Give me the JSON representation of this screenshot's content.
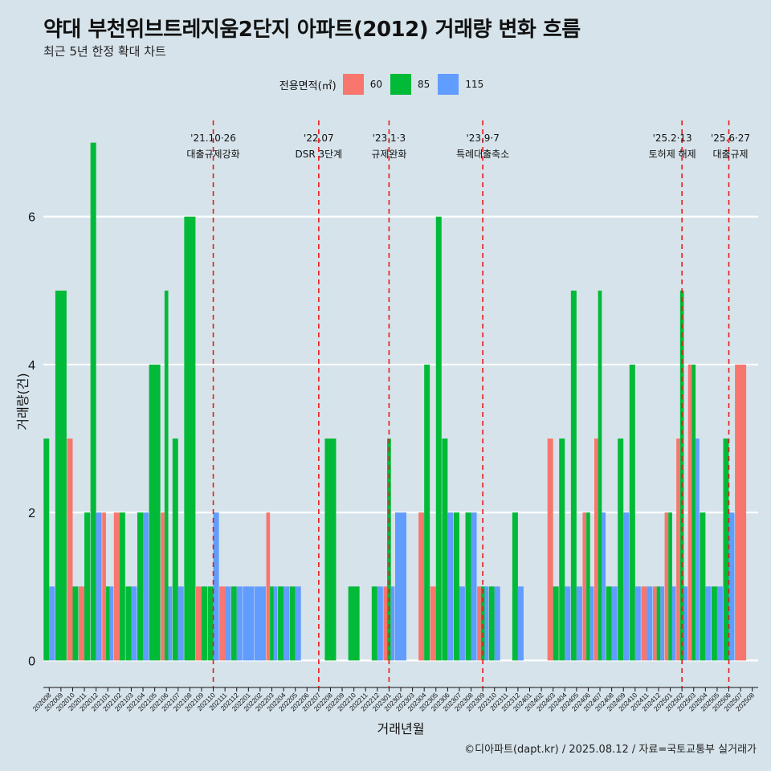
{
  "header": {
    "title": "약대 부천위브트레지움2단지 아파트(2012) 거래량 변화 흐름",
    "subtitle": "최근 5년 한정 확대 차트"
  },
  "legend": {
    "title": "전용면적(㎡)",
    "items": [
      {
        "label": "60",
        "color": "#f8766d"
      },
      {
        "label": "85",
        "color": "#00ba38"
      },
      {
        "label": "115",
        "color": "#619cff"
      }
    ]
  },
  "caption": "©디아파트(dapt.kr) / 2025.08.12 / 자료=국토교통부 실거래가",
  "chart_data": {
    "type": "bar",
    "xlabel": "거래년월",
    "ylabel": "거래량(건)",
    "ylim": [
      -0.3,
      7.3
    ],
    "yticks": [
      0,
      2,
      4,
      6
    ],
    "grid": true,
    "legend_position": "top",
    "categories": [
      "202008",
      "202009",
      "202010",
      "202011",
      "202012",
      "202101",
      "202102",
      "202103",
      "202104",
      "202105",
      "202106",
      "202107",
      "202108",
      "202109",
      "202110",
      "202111",
      "202112",
      "202201",
      "202202",
      "202203",
      "202204",
      "202205",
      "202206",
      "202207",
      "202208",
      "202209",
      "202210",
      "202211",
      "202212",
      "202301",
      "202302",
      "202303",
      "202304",
      "202305",
      "202306",
      "202307",
      "202308",
      "202309",
      "202310",
      "202311",
      "202312",
      "202401",
      "202402",
      "202403",
      "202404",
      "202405",
      "202406",
      "202407",
      "202408",
      "202409",
      "202410",
      "202411",
      "202412",
      "202501",
      "202502",
      "202503",
      "202504",
      "202505",
      "202506",
      "202507",
      "202508"
    ],
    "series": [
      {
        "name": "60",
        "color": "#f8766d",
        "values": [
          0,
          0,
          3,
          1,
          0,
          2,
          2,
          0,
          0,
          0,
          2,
          0,
          0,
          1,
          0,
          1,
          0,
          0,
          0,
          2,
          0,
          0,
          0,
          0,
          0,
          0,
          0,
          0,
          0,
          1,
          0,
          0,
          2,
          1,
          0,
          0,
          0,
          1,
          0,
          0,
          0,
          0,
          0,
          3,
          0,
          0,
          2,
          3,
          0,
          0,
          0,
          1,
          1,
          2,
          3,
          4,
          0,
          0,
          0,
          4,
          0
        ]
      },
      {
        "name": "85",
        "color": "#00ba38",
        "values": [
          3,
          5,
          1,
          2,
          7,
          1,
          2,
          1,
          2,
          4,
          5,
          3,
          6,
          1,
          1,
          0,
          1,
          0,
          0,
          1,
          1,
          1,
          0,
          0,
          3,
          0,
          1,
          0,
          1,
          3,
          0,
          0,
          4,
          6,
          3,
          2,
          2,
          1,
          1,
          0,
          2,
          0,
          0,
          1,
          3,
          5,
          2,
          5,
          1,
          3,
          4,
          0,
          1,
          2,
          5,
          4,
          2,
          1,
          3,
          0,
          0
        ]
      },
      {
        "name": "115",
        "color": "#619cff",
        "values": [
          1,
          0,
          0,
          0,
          2,
          1,
          0,
          1,
          2,
          0,
          1,
          1,
          0,
          0,
          2,
          1,
          1,
          1,
          1,
          1,
          1,
          1,
          0,
          0,
          0,
          0,
          0,
          0,
          1,
          1,
          2,
          0,
          0,
          0,
          2,
          1,
          2,
          1,
          1,
          0,
          1,
          0,
          0,
          0,
          1,
          1,
          1,
          2,
          1,
          2,
          1,
          1,
          1,
          1,
          1,
          3,
          1,
          1,
          2,
          0,
          0
        ]
      }
    ],
    "annotations": [
      {
        "x": "202110",
        "line1": "'21.10·26",
        "line2": "대출규제강화"
      },
      {
        "x": "202207",
        "line1": "'22.07",
        "line2": "DSR 3단계"
      },
      {
        "x": "202301",
        "line1": "'23.1·3",
        "line2": "규제완화"
      },
      {
        "x": "202309",
        "line1": "'23.9·7",
        "line2": "특례대출축소"
      },
      {
        "x": "202502",
        "line1": "'25.2·13",
        "line2": "토허제 해제"
      },
      {
        "x": "202506",
        "line1": "'25.6·27",
        "line2": "대출규제"
      }
    ]
  }
}
